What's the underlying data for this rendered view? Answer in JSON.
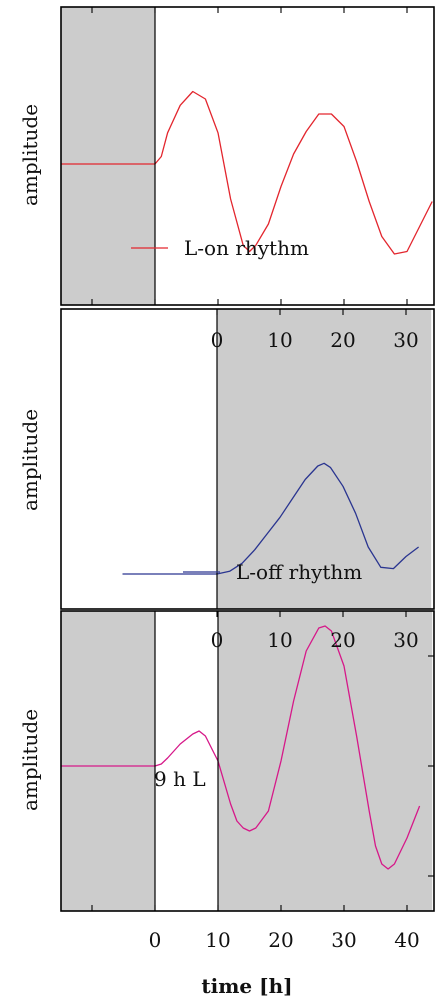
{
  "chart_data": [
    {
      "type": "line",
      "panel": "top",
      "xlabel": "",
      "ylabel": "amplitude",
      "xlim": [
        -15,
        44
      ],
      "dark_interval": [
        -15,
        0
      ],
      "xticks": [
        0,
        10,
        20,
        30,
        40
      ],
      "series": [
        {
          "name": "L-on rhythm",
          "color": "#e3262e",
          "x": [
            -15,
            0,
            1,
            2,
            4,
            6,
            8,
            10,
            12,
            14,
            15,
            16,
            18,
            20,
            22,
            24,
            26,
            28,
            30,
            32,
            34,
            36,
            38,
            40,
            42,
            44
          ],
          "y": [
            0,
            0,
            0.06,
            0.25,
            0.47,
            0.58,
            0.52,
            0.25,
            -0.28,
            -0.65,
            -0.7,
            -0.65,
            -0.48,
            -0.18,
            0.08,
            0.26,
            0.4,
            0.4,
            0.3,
            0.02,
            -0.3,
            -0.58,
            -0.72,
            -0.7,
            -0.5,
            -0.3
          ]
        }
      ]
    },
    {
      "type": "line",
      "panel": "middle",
      "xlabel": "",
      "ylabel": "amplitude",
      "xlim": [
        -15,
        34
      ],
      "dark_interval": [
        0,
        34
      ],
      "xticks": [
        0,
        10,
        20,
        30,
        40
      ],
      "series": [
        {
          "name": "L-off rhythm",
          "color": "#2a3590",
          "x": [
            -15,
            0,
            1,
            2,
            4,
            6,
            8,
            10,
            12,
            14,
            16,
            17,
            18,
            20,
            22,
            24,
            26,
            28,
            30,
            32
          ],
          "y": [
            0,
            0,
            0.01,
            0.02,
            0.08,
            0.18,
            0.3,
            0.42,
            0.56,
            0.7,
            0.8,
            0.82,
            0.79,
            0.65,
            0.45,
            0.2,
            0.05,
            0.04,
            0.13,
            0.2
          ]
        }
      ]
    },
    {
      "type": "line",
      "panel": "bottom",
      "xlabel": "time [h]",
      "ylabel": "amplitude",
      "xlim": [
        -15,
        44
      ],
      "dark_intervals": [
        [
          -15,
          0
        ],
        [
          10,
          44
        ]
      ],
      "xticks": [
        0,
        10,
        20,
        30,
        40
      ],
      "top_xticks": [
        0,
        10,
        20,
        30
      ],
      "series": [
        {
          "name": "9 h L",
          "color": "#d61889",
          "x": [
            -15,
            0,
            1,
            2,
            4,
            6,
            7,
            8,
            10,
            12,
            13,
            14,
            15,
            16,
            18,
            20,
            22,
            24,
            26,
            27,
            28,
            30,
            32,
            34,
            35,
            36,
            37,
            38,
            40,
            42
          ],
          "y": [
            0,
            0,
            0.02,
            0.08,
            0.22,
            0.32,
            0.35,
            0.3,
            0.05,
            -0.38,
            -0.55,
            -0.62,
            -0.65,
            -0.62,
            -0.45,
            0.05,
            0.65,
            1.15,
            1.38,
            1.4,
            1.35,
            1.0,
            0.3,
            -0.45,
            -0.8,
            -0.98,
            -1.03,
            -0.98,
            -0.72,
            -0.4
          ]
        }
      ]
    }
  ]
}
